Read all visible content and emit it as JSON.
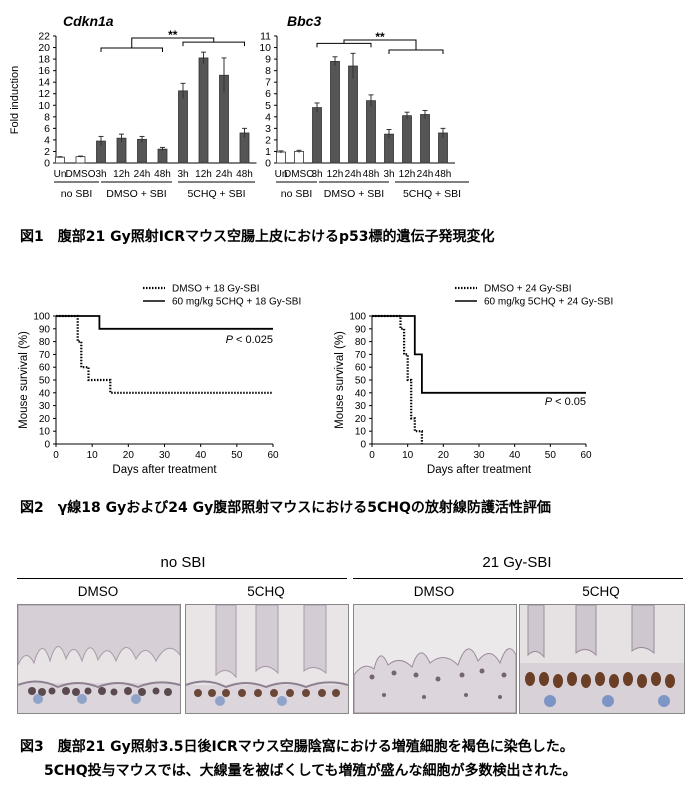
{
  "figure1": {
    "caption": "図1　腹部21 Gy照射ICRマウス空腸上皮におけるp53標的遺伝子発現変化",
    "ylabel": "Fold induction",
    "sig": "**",
    "time_labels": [
      "Un",
      "DMSO",
      "3h",
      "12h",
      "24h",
      "48h",
      "3h",
      "12h",
      "24h",
      "48h"
    ],
    "group_labels": [
      "no SBI",
      "DMSO + SBI",
      "5CHQ + SBI"
    ]
  },
  "figure2": {
    "caption": "図2　γ線18 Gyおよび24 Gy腹部照射マウスにおける5CHQの放射線防護活性評価"
  },
  "figure3": {
    "caption_line1": "図3　腹部21 Gy照射3.5日後ICRマウス空腸陰窩における増殖細胞を褐色に染色した。",
    "caption_line2": "5CHQ投与マウスでは、大線量を被ばくしても増殖が盛んな細胞が多数検出された。",
    "group_headers": [
      "no SBI",
      "21 Gy-SBI"
    ],
    "panel_labels": [
      "DMSO",
      "5CHQ",
      "DMSO",
      "5CHQ"
    ]
  },
  "chart_data": [
    {
      "type": "bar",
      "title": "Cdkn1a",
      "ylabel": "Fold induction",
      "categories": [
        "Un",
        "DMSO",
        "DMSO + SBI 3h",
        "DMSO + SBI 12h",
        "DMSO + SBI 24h",
        "DMSO + SBI 48h",
        "5CHQ + SBI 3h",
        "5CHQ + SBI 12h",
        "5CHQ + SBI 24h",
        "5CHQ + SBI 48h"
      ],
      "values": [
        1.0,
        1.1,
        3.8,
        4.3,
        4.1,
        2.4,
        12.5,
        18.2,
        15.2,
        5.2
      ],
      "errors": [
        0.1,
        0.1,
        0.8,
        0.7,
        0.5,
        0.3,
        1.3,
        1.0,
        3.0,
        0.8
      ],
      "colors": [
        "#ffffff",
        "#ffffff",
        "#555555",
        "#555555",
        "#555555",
        "#555555",
        "#555555",
        "#555555",
        "#555555",
        "#555555"
      ],
      "yticks": [
        0,
        2,
        4,
        6,
        8,
        10,
        12,
        14,
        16,
        18,
        20,
        22
      ],
      "ylim": [
        0,
        22
      ]
    },
    {
      "type": "bar",
      "title": "Bbc3",
      "categories": [
        "Un",
        "DMSO",
        "DMSO + SBI 3h",
        "DMSO + SBI 12h",
        "DMSO + SBI 24h",
        "DMSO + SBI 48h",
        "5CHQ + SBI 3h",
        "5CHQ + SBI 12h",
        "5CHQ + SBI 24h",
        "5CHQ + SBI 48h"
      ],
      "values": [
        0.95,
        1.0,
        4.8,
        8.8,
        8.4,
        5.4,
        2.5,
        4.1,
        4.2,
        2.6
      ],
      "errors": [
        0.1,
        0.1,
        0.4,
        0.4,
        1.1,
        0.5,
        0.4,
        0.3,
        0.35,
        0.4
      ],
      "colors": [
        "#ffffff",
        "#ffffff",
        "#555555",
        "#555555",
        "#555555",
        "#555555",
        "#555555",
        "#555555",
        "#555555",
        "#555555"
      ],
      "yticks": [
        0,
        1,
        2,
        3,
        4,
        5,
        6,
        7,
        8,
        9,
        10,
        11
      ],
      "ylim": [
        0,
        11
      ]
    },
    {
      "type": "line",
      "xlabel": "Days after treatment",
      "ylabel": "Mouse survival (%)",
      "xlim": [
        0,
        60
      ],
      "ylim": [
        0,
        100
      ],
      "xticks": [
        0,
        10,
        20,
        30,
        40,
        50,
        60
      ],
      "yticks": [
        0,
        10,
        20,
        30,
        40,
        50,
        60,
        70,
        80,
        90,
        100
      ],
      "annotation": "P < 0.025",
      "series": [
        {
          "name": "DMSO + 18 Gy-SBI",
          "style": "dotted",
          "steps": [
            [
              0,
              100
            ],
            [
              6,
              100
            ],
            [
              6,
              80
            ],
            [
              7,
              80
            ],
            [
              7,
              60
            ],
            [
              9,
              60
            ],
            [
              9,
              50
            ],
            [
              15,
              50
            ],
            [
              15,
              40
            ],
            [
              60,
              40
            ]
          ]
        },
        {
          "name": "60 mg/kg 5CHQ + 18 Gy-SBI",
          "style": "solid",
          "steps": [
            [
              0,
              100
            ],
            [
              12,
              100
            ],
            [
              12,
              90
            ],
            [
              60,
              90
            ]
          ]
        }
      ]
    },
    {
      "type": "line",
      "xlabel": "Days after treatment",
      "ylabel": "Mouse survival (%)",
      "xlim": [
        0,
        60
      ],
      "ylim": [
        0,
        100
      ],
      "xticks": [
        0,
        10,
        20,
        30,
        40,
        50,
        60
      ],
      "yticks": [
        0,
        10,
        20,
        30,
        40,
        50,
        60,
        70,
        80,
        90,
        100
      ],
      "annotation": "P < 0.05",
      "series": [
        {
          "name": "DMSO + 24 Gy-SBI",
          "style": "dotted",
          "steps": [
            [
              0,
              100
            ],
            [
              8,
              100
            ],
            [
              8,
              90
            ],
            [
              9,
              90
            ],
            [
              9,
              70
            ],
            [
              10,
              70
            ],
            [
              10,
              50
            ],
            [
              11,
              50
            ],
            [
              11,
              20
            ],
            [
              12,
              20
            ],
            [
              12,
              10
            ],
            [
              14,
              10
            ],
            [
              14,
              0
            ]
          ]
        },
        {
          "name": "60 mg/kg 5CHQ + 24 Gy-SBI",
          "style": "solid",
          "steps": [
            [
              0,
              100
            ],
            [
              12,
              100
            ],
            [
              12,
              70
            ],
            [
              14,
              70
            ],
            [
              14,
              40
            ],
            [
              60,
              40
            ]
          ]
        }
      ]
    }
  ]
}
